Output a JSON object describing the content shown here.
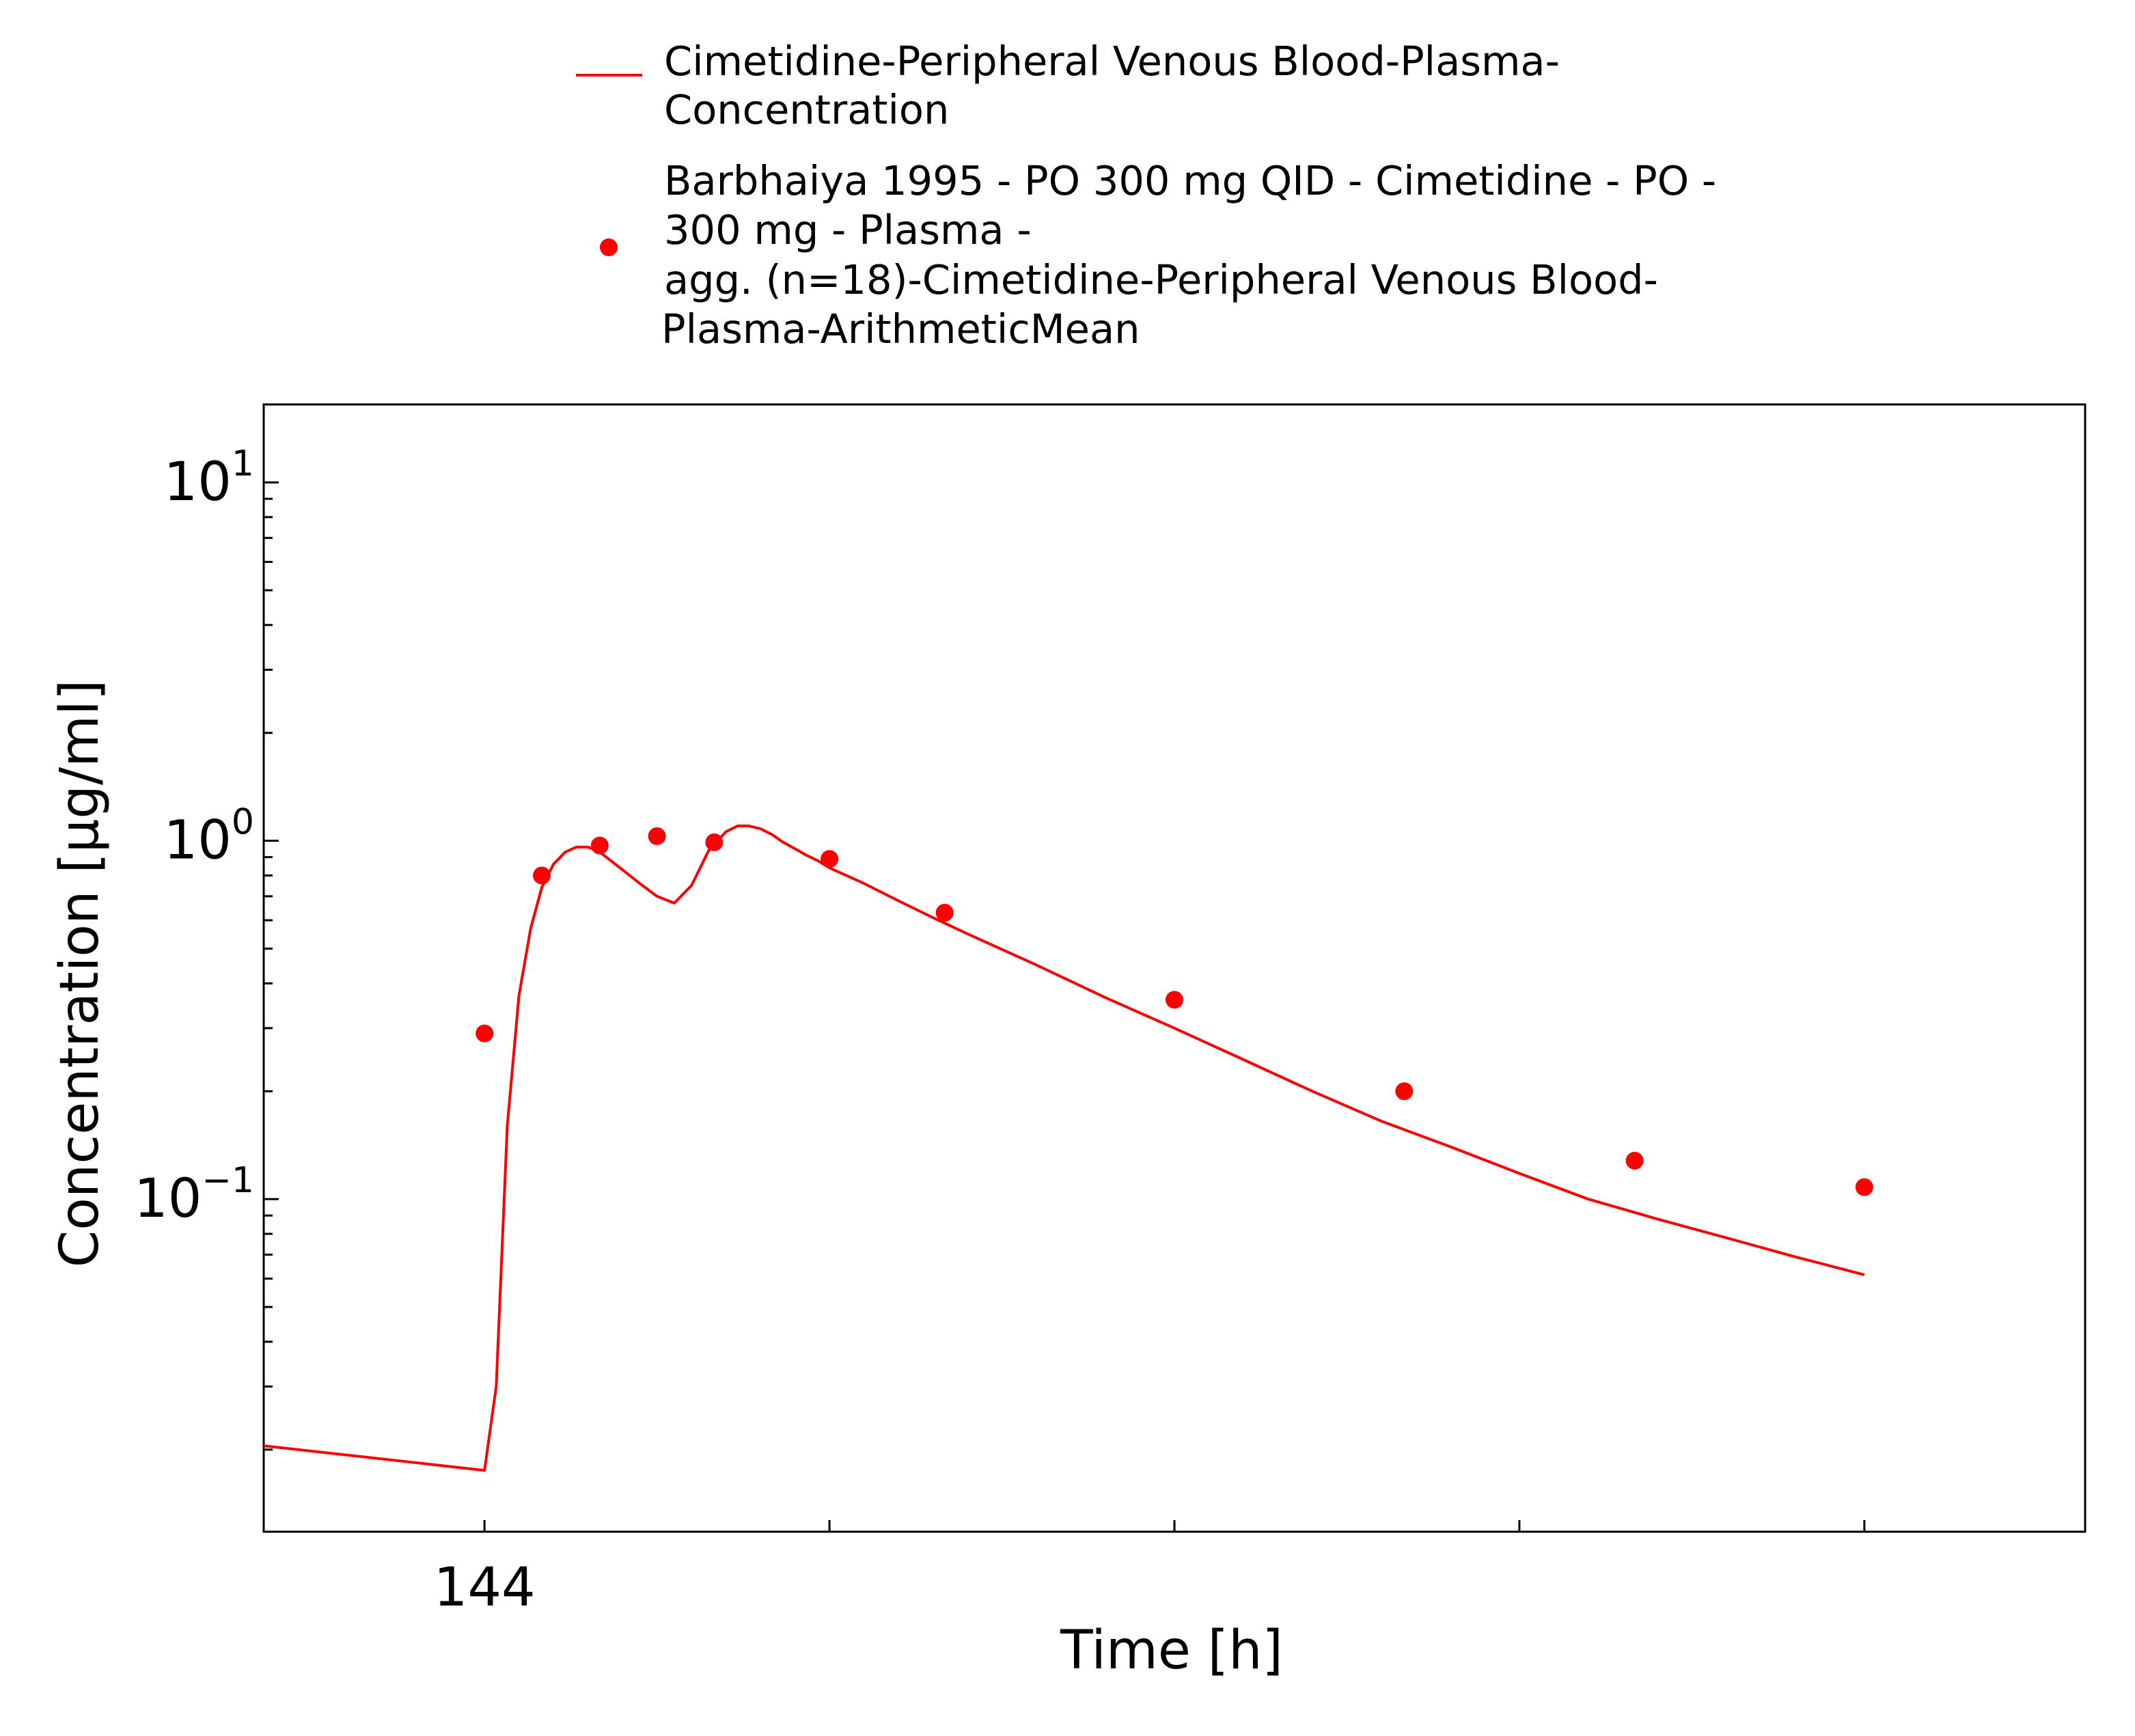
{
  "chart_data": {
    "type": "line",
    "title": "",
    "xlabel": "Time [h]",
    "ylabel": "Concentration [µg/ml]",
    "x_scale": "linear",
    "y_scale": "log",
    "xlim": [
      140.8,
      167.2
    ],
    "ylim": [
      0.0118,
      16.5
    ],
    "grid": false,
    "legend_position": "top-center",
    "x_ticks": [
      {
        "value": 144,
        "label": "144"
      },
      {
        "value": 149,
        "label": ""
      },
      {
        "value": 154,
        "label": ""
      },
      {
        "value": 159,
        "label": ""
      },
      {
        "value": 164,
        "label": ""
      }
    ],
    "y_ticks": [
      {
        "value": 10,
        "base": "10",
        "exp": "1"
      },
      {
        "value": 1,
        "base": "10",
        "exp": "0"
      },
      {
        "value": 0.1,
        "base": "10",
        "exp": "−1"
      }
    ],
    "colors": {
      "series_color": "#ff0000",
      "axis_color": "#000000",
      "background": "#ffffff"
    },
    "series": [
      {
        "name": "Cimetidine-Peripheral Venous Blood-Plasma-Concentration",
        "legend_lines": [
          "Cimetidine-Peripheral Venous Blood-Plasma-",
          "Concentration"
        ],
        "kind": "line",
        "x": [
          140.8,
          144.0,
          144.17,
          144.33,
          144.5,
          144.67,
          144.83,
          145.0,
          145.17,
          145.33,
          145.5,
          145.67,
          145.83,
          146.0,
          146.25,
          146.5,
          146.75,
          147.0,
          147.25,
          147.5,
          147.67,
          147.83,
          148.0,
          148.17,
          148.33,
          148.5,
          148.67,
          148.83,
          149.0,
          149.5,
          150.0,
          150.5,
          151.0,
          152.0,
          153.0,
          154.0,
          155.0,
          156.0,
          157.0,
          158.0,
          159.0,
          160.0,
          161.0,
          162.0,
          163.0,
          164.0
        ],
        "y": [
          0.0205,
          0.0175,
          0.03,
          0.16,
          0.37,
          0.57,
          0.74,
          0.86,
          0.93,
          0.96,
          0.96,
          0.93,
          0.88,
          0.83,
          0.76,
          0.7,
          0.67,
          0.75,
          0.94,
          1.06,
          1.1,
          1.1,
          1.08,
          1.04,
          0.99,
          0.95,
          0.91,
          0.88,
          0.84,
          0.76,
          0.68,
          0.61,
          0.55,
          0.45,
          0.365,
          0.3,
          0.245,
          0.2,
          0.165,
          0.14,
          0.118,
          0.1,
          0.088,
          0.078,
          0.069,
          0.0615
        ]
      },
      {
        "name": "Barbhaiya 1995 - PO 300 mg QID - Cimetidine - PO - 300 mg - Plasma - agg. (n=18)-Cimetidine-Peripheral Venous Blood-Plasma-ArithmeticMean",
        "legend_lines": [
          "Barbhaiya 1995 - PO 300 mg QID - Cimetidine - PO -",
          "300 mg - Plasma -",
          "agg. (n=18)-Cimetidine-Peripheral Venous Blood-",
          "Plasma-ArithmeticMean"
        ],
        "kind": "scatter",
        "x": [
          144.0,
          144.83,
          145.67,
          146.5,
          147.33,
          149.0,
          150.67,
          154.0,
          157.33,
          160.67,
          164.0
        ],
        "y": [
          0.29,
          0.8,
          0.97,
          1.03,
          0.99,
          0.89,
          0.63,
          0.36,
          0.2,
          0.128,
          0.108
        ]
      }
    ]
  }
}
